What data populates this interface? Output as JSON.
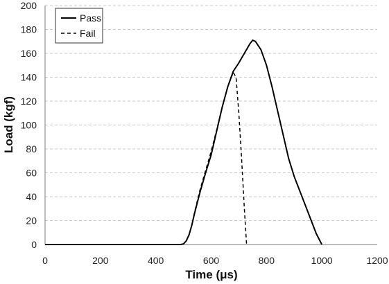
{
  "chart_data": {
    "type": "line",
    "title": "",
    "xlabel": "Time (μs)",
    "ylabel": "Load (kgf)",
    "xlim": [
      0,
      1200
    ],
    "ylim": [
      0,
      200
    ],
    "x_ticks": [
      0,
      200,
      400,
      600,
      800,
      1000,
      1200
    ],
    "y_ticks": [
      0,
      20,
      40,
      60,
      80,
      100,
      120,
      140,
      160,
      180,
      200
    ],
    "grid": "horizontal dashed",
    "legend_position": "top-left",
    "series": [
      {
        "name": "Pass",
        "style": "solid",
        "color": "#000000",
        "points": [
          [
            0,
            0
          ],
          [
            490,
            0
          ],
          [
            500,
            0.5
          ],
          [
            510,
            3
          ],
          [
            520,
            8
          ],
          [
            530,
            16
          ],
          [
            540,
            26
          ],
          [
            560,
            44
          ],
          [
            580,
            60
          ],
          [
            600,
            75
          ],
          [
            620,
            95
          ],
          [
            640,
            115
          ],
          [
            660,
            132
          ],
          [
            680,
            145
          ],
          [
            700,
            152
          ],
          [
            720,
            160
          ],
          [
            740,
            168
          ],
          [
            750,
            171
          ],
          [
            760,
            170
          ],
          [
            780,
            163
          ],
          [
            800,
            150
          ],
          [
            820,
            132
          ],
          [
            840,
            112
          ],
          [
            860,
            92
          ],
          [
            880,
            72
          ],
          [
            900,
            57
          ],
          [
            920,
            45
          ],
          [
            940,
            33
          ],
          [
            960,
            21
          ],
          [
            980,
            9
          ],
          [
            1000,
            0
          ]
        ]
      },
      {
        "name": "Fail",
        "style": "dashed",
        "color": "#000000",
        "points": [
          [
            0,
            0
          ],
          [
            490,
            0
          ],
          [
            500,
            0.5
          ],
          [
            510,
            3
          ],
          [
            520,
            8
          ],
          [
            530,
            16
          ],
          [
            540,
            27
          ],
          [
            560,
            46
          ],
          [
            580,
            62
          ],
          [
            600,
            78
          ],
          [
            620,
            96
          ],
          [
            640,
            115
          ],
          [
            660,
            132
          ],
          [
            680,
            144
          ],
          [
            690,
            140
          ],
          [
            700,
            110
          ],
          [
            710,
            72
          ],
          [
            720,
            30
          ],
          [
            728,
            0
          ]
        ]
      }
    ]
  }
}
